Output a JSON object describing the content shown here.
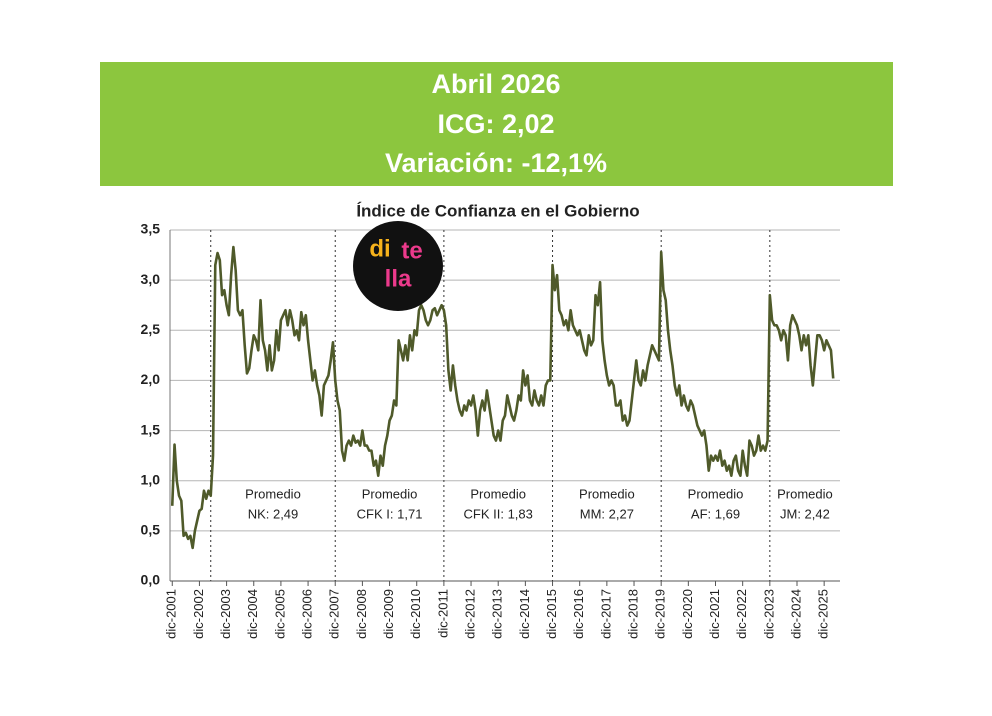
{
  "header": {
    "lines": [
      "Abril 2026",
      "ICG: 2,02",
      "Variación: -12,1%"
    ]
  },
  "logo": [
    "di",
    "te",
    "lla"
  ],
  "chart_data": {
    "type": "line",
    "title": "Índice de Confianza en el Gobierno",
    "color": "#4f5a2a",
    "xlim": [
      "2001-11",
      "2026-07"
    ],
    "ylim": [
      0,
      3.5
    ],
    "yticks": [
      {
        "value": 0,
        "label": "0,0"
      },
      {
        "value": 0.5,
        "label": "0,5"
      },
      {
        "value": 1,
        "label": "1,0"
      },
      {
        "value": 1.5,
        "label": "1,5"
      },
      {
        "value": 2,
        "label": "2,0"
      },
      {
        "value": 2.5,
        "label": "2,5"
      },
      {
        "value": 3,
        "label": "3,0"
      },
      {
        "value": 3.5,
        "label": "3,5"
      }
    ],
    "xticks": [
      {
        "value": "2001-12",
        "label": "dic-2001"
      },
      {
        "value": "2002-12",
        "label": "dic-2002"
      },
      {
        "value": "2003-12",
        "label": "dic-2003"
      },
      {
        "value": "2004-12",
        "label": "dic-2004"
      },
      {
        "value": "2005-12",
        "label": "dic-2005"
      },
      {
        "value": "2006-12",
        "label": "dic-2006"
      },
      {
        "value": "2007-12",
        "label": "dic-2007"
      },
      {
        "value": "2008-12",
        "label": "dic-2008"
      },
      {
        "value": "2009-12",
        "label": "dic-2009"
      },
      {
        "value": "2010-12",
        "label": "dic-2010"
      },
      {
        "value": "2011-12",
        "label": "dic-2011"
      },
      {
        "value": "2012-12",
        "label": "dic-2012"
      },
      {
        "value": "2013-12",
        "label": "dic-2013"
      },
      {
        "value": "2014-12",
        "label": "dic-2014"
      },
      {
        "value": "2015-12",
        "label": "dic-2015"
      },
      {
        "value": "2016-12",
        "label": "dic-2016"
      },
      {
        "value": "2017-12",
        "label": "dic-2017"
      },
      {
        "value": "2018-12",
        "label": "dic-2018"
      },
      {
        "value": "2019-12",
        "label": "dic-2019"
      },
      {
        "value": "2020-12",
        "label": "dic-2020"
      },
      {
        "value": "2021-12",
        "label": "dic-2021"
      },
      {
        "value": "2022-12",
        "label": "dic-2022"
      },
      {
        "value": "2023-12",
        "label": "dic-2023"
      },
      {
        "value": "2024-12",
        "label": "dic-2024"
      },
      {
        "value": "2025-12",
        "label": "dic-2025"
      }
    ],
    "grid": true,
    "dividers": [
      "2003-05",
      "2007-12",
      "2011-12",
      "2015-12",
      "2019-12",
      "2023-12"
    ],
    "annotations": [
      [
        "Promedio",
        "NK: 2,49"
      ],
      [
        "Promedio",
        "CFK I: 1,71"
      ],
      [
        "Promedio",
        "CFK II: 1,83"
      ],
      [
        "Promedio",
        "MM: 2,27"
      ],
      [
        "Promedio",
        "AF: 1,69"
      ],
      [
        "Promedio",
        "JM: 2,42"
      ]
    ],
    "x": [
      "2001-12",
      "2002-01",
      "2002-02",
      "2002-03",
      "2002-04",
      "2002-05",
      "2002-06",
      "2002-07",
      "2002-08",
      "2002-09",
      "2002-10",
      "2002-11",
      "2002-12",
      "2003-01",
      "2003-02",
      "2003-03",
      "2003-04",
      "2003-05",
      "2003-06",
      "2003-07",
      "2003-08",
      "2003-09",
      "2003-10",
      "2003-11",
      "2003-12",
      "2004-01",
      "2004-02",
      "2004-03",
      "2004-04",
      "2004-05",
      "2004-06",
      "2004-07",
      "2004-08",
      "2004-09",
      "2004-10",
      "2004-11",
      "2004-12",
      "2005-01",
      "2005-02",
      "2005-03",
      "2005-04",
      "2005-05",
      "2005-06",
      "2005-07",
      "2005-08",
      "2005-09",
      "2005-10",
      "2005-11",
      "2005-12",
      "2006-01",
      "2006-02",
      "2006-03",
      "2006-04",
      "2006-05",
      "2006-06",
      "2006-07",
      "2006-08",
      "2006-09",
      "2006-10",
      "2006-11",
      "2006-12",
      "2007-01",
      "2007-02",
      "2007-03",
      "2007-04",
      "2007-05",
      "2007-06",
      "2007-07",
      "2007-08",
      "2007-09",
      "2007-10",
      "2007-11",
      "2007-12",
      "2008-01",
      "2008-02",
      "2008-03",
      "2008-04",
      "2008-05",
      "2008-06",
      "2008-07",
      "2008-08",
      "2008-09",
      "2008-10",
      "2008-11",
      "2008-12",
      "2009-01",
      "2009-02",
      "2009-03",
      "2009-04",
      "2009-05",
      "2009-06",
      "2009-07",
      "2009-08",
      "2009-09",
      "2009-10",
      "2009-11",
      "2009-12",
      "2010-01",
      "2010-02",
      "2010-03",
      "2010-04",
      "2010-05",
      "2010-06",
      "2010-07",
      "2010-08",
      "2010-09",
      "2010-10",
      "2010-11",
      "2010-12",
      "2011-01",
      "2011-02",
      "2011-03",
      "2011-04",
      "2011-05",
      "2011-06",
      "2011-07",
      "2011-08",
      "2011-09",
      "2011-10",
      "2011-11",
      "2011-12",
      "2012-01",
      "2012-02",
      "2012-03",
      "2012-04",
      "2012-05",
      "2012-06",
      "2012-07",
      "2012-08",
      "2012-09",
      "2012-10",
      "2012-11",
      "2012-12",
      "2013-01",
      "2013-02",
      "2013-03",
      "2013-04",
      "2013-05",
      "2013-06",
      "2013-07",
      "2013-08",
      "2013-09",
      "2013-10",
      "2013-11",
      "2013-12",
      "2014-01",
      "2014-02",
      "2014-03",
      "2014-04",
      "2014-05",
      "2014-06",
      "2014-07",
      "2014-08",
      "2014-09",
      "2014-10",
      "2014-11",
      "2014-12",
      "2015-01",
      "2015-02",
      "2015-03",
      "2015-04",
      "2015-05",
      "2015-06",
      "2015-07",
      "2015-08",
      "2015-09",
      "2015-10",
      "2015-11",
      "2015-12",
      "2016-01",
      "2016-02",
      "2016-03",
      "2016-04",
      "2016-05",
      "2016-06",
      "2016-07",
      "2016-08",
      "2016-09",
      "2016-10",
      "2016-11",
      "2016-12",
      "2017-01",
      "2017-02",
      "2017-03",
      "2017-04",
      "2017-05",
      "2017-06",
      "2017-07",
      "2017-08",
      "2017-09",
      "2017-10",
      "2017-11",
      "2017-12",
      "2018-01",
      "2018-02",
      "2018-03",
      "2018-04",
      "2018-05",
      "2018-06",
      "2018-07",
      "2018-08",
      "2018-09",
      "2018-10",
      "2018-11",
      "2018-12",
      "2019-01",
      "2019-02",
      "2019-03",
      "2019-04",
      "2019-05",
      "2019-06",
      "2019-07",
      "2019-08",
      "2019-09",
      "2019-10",
      "2019-11",
      "2019-12",
      "2020-01",
      "2020-02",
      "2020-03",
      "2020-04",
      "2020-05",
      "2020-06",
      "2020-07",
      "2020-08",
      "2020-09",
      "2020-10",
      "2020-11",
      "2020-12",
      "2021-01",
      "2021-02",
      "2021-03",
      "2021-04",
      "2021-05",
      "2021-06",
      "2021-07",
      "2021-08",
      "2021-09",
      "2021-10",
      "2021-11",
      "2021-12",
      "2022-01",
      "2022-02",
      "2022-03",
      "2022-04",
      "2022-05",
      "2022-06",
      "2022-07",
      "2022-08",
      "2022-09",
      "2022-10",
      "2022-11",
      "2022-12",
      "2023-01",
      "2023-02",
      "2023-03",
      "2023-04",
      "2023-05",
      "2023-06",
      "2023-07",
      "2023-08",
      "2023-09",
      "2023-10",
      "2023-11",
      "2023-12",
      "2024-01",
      "2024-02",
      "2024-03",
      "2024-04",
      "2024-05",
      "2024-06",
      "2024-07",
      "2024-08",
      "2024-09",
      "2024-10",
      "2024-11",
      "2024-12",
      "2025-01",
      "2025-02",
      "2025-03",
      "2025-04",
      "2025-05",
      "2025-06",
      "2025-07",
      "2025-08",
      "2025-09",
      "2025-10",
      "2025-11",
      "2025-12",
      "2026-01",
      "2026-02",
      "2026-03",
      "2026-04"
    ],
    "values": [
      0.75,
      1.36,
      1.0,
      0.85,
      0.8,
      0.45,
      0.48,
      0.42,
      0.45,
      0.33,
      0.5,
      0.6,
      0.7,
      0.72,
      0.9,
      0.82,
      0.9,
      0.85,
      1.25,
      3.15,
      3.27,
      3.2,
      2.85,
      2.9,
      2.75,
      2.65,
      3.05,
      3.33,
      3.1,
      2.7,
      2.65,
      2.7,
      2.35,
      2.07,
      2.12,
      2.3,
      2.45,
      2.4,
      2.3,
      2.8,
      2.4,
      2.3,
      2.1,
      2.35,
      2.1,
      2.2,
      2.5,
      2.3,
      2.6,
      2.65,
      2.7,
      2.55,
      2.7,
      2.6,
      2.45,
      2.5,
      2.4,
      2.68,
      2.55,
      2.65,
      2.4,
      2.2,
      2.0,
      2.1,
      1.95,
      1.85,
      1.65,
      1.95,
      2.0,
      2.05,
      2.2,
      2.38,
      2.0,
      1.8,
      1.7,
      1.3,
      1.2,
      1.35,
      1.4,
      1.35,
      1.45,
      1.38,
      1.4,
      1.35,
      1.5,
      1.35,
      1.35,
      1.3,
      1.3,
      1.15,
      1.2,
      1.05,
      1.25,
      1.15,
      1.35,
      1.45,
      1.6,
      1.65,
      1.8,
      1.75,
      2.4,
      2.3,
      2.2,
      2.35,
      2.2,
      2.45,
      2.3,
      2.5,
      2.45,
      2.7,
      2.75,
      2.7,
      2.6,
      2.55,
      2.6,
      2.7,
      2.72,
      2.65,
      2.7,
      2.75,
      2.7,
      2.55,
      2.1,
      1.9,
      2.15,
      1.95,
      1.8,
      1.7,
      1.65,
      1.75,
      1.7,
      1.8,
      1.75,
      1.85,
      1.7,
      1.45,
      1.7,
      1.8,
      1.7,
      1.9,
      1.75,
      1.6,
      1.45,
      1.4,
      1.5,
      1.4,
      1.6,
      1.65,
      1.85,
      1.75,
      1.65,
      1.6,
      1.7,
      1.85,
      1.8,
      2.1,
      1.95,
      2.05,
      1.8,
      1.75,
      1.9,
      1.8,
      1.75,
      1.85,
      1.75,
      1.95,
      2.0,
      2.0,
      3.15,
      2.9,
      3.05,
      2.7,
      2.65,
      2.55,
      2.6,
      2.5,
      2.7,
      2.55,
      2.5,
      2.45,
      2.5,
      2.4,
      2.3,
      2.25,
      2.45,
      2.35,
      2.4,
      2.85,
      2.75,
      2.98,
      2.4,
      2.2,
      2.05,
      1.95,
      2.0,
      1.95,
      1.75,
      1.75,
      1.8,
      1.6,
      1.65,
      1.55,
      1.6,
      1.8,
      2.0,
      2.2,
      2.0,
      1.95,
      2.1,
      2.0,
      2.15,
      2.25,
      2.35,
      2.3,
      2.25,
      2.2,
      3.28,
      2.9,
      2.8,
      2.5,
      2.3,
      2.15,
      1.95,
      1.85,
      1.95,
      1.75,
      1.85,
      1.75,
      1.7,
      1.8,
      1.75,
      1.65,
      1.55,
      1.5,
      1.45,
      1.5,
      1.35,
      1.1,
      1.25,
      1.2,
      1.25,
      1.2,
      1.3,
      1.15,
      1.2,
      1.1,
      1.15,
      1.05,
      1.2,
      1.25,
      1.1,
      1.05,
      1.3,
      1.15,
      1.05,
      1.4,
      1.35,
      1.25,
      1.3,
      1.45,
      1.3,
      1.35,
      1.3,
      1.4,
      2.85,
      2.6,
      2.55,
      2.55,
      2.5,
      2.4,
      2.5,
      2.45,
      2.2,
      2.55,
      2.65,
      2.6,
      2.55,
      2.45,
      2.3,
      2.45,
      2.35,
      2.45,
      2.15,
      1.95,
      2.2,
      2.45,
      2.45,
      2.4,
      2.3,
      2.4,
      2.35,
      2.3,
      2.02
    ]
  }
}
